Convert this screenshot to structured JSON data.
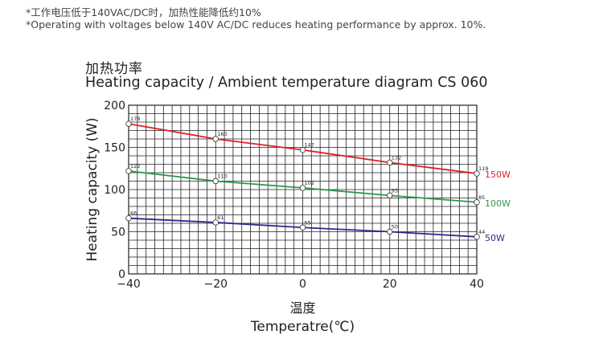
{
  "notes": {
    "cn": "*工作电压低于140VAC/DC时，加热性能降低约10%",
    "en": "*Operating with voltages below 140V AC/DC reduces heating performance by approx. 10%."
  },
  "chart_data": {
    "type": "line",
    "title_cn": "加热功率",
    "title": "Heating capacity / Ambient temperature diagram CS 060",
    "xlabel_cn": "温度",
    "xlabel": "Temperatre(℃)",
    "ylabel": "Heating capacity (W)",
    "xlim": [
      -40,
      40
    ],
    "ylim": [
      0,
      200
    ],
    "x_ticks": [
      "−40",
      "−20",
      "0",
      "20",
      "40"
    ],
    "y_ticks": [
      "0",
      "50",
      "100",
      "150",
      "200"
    ],
    "grid": true,
    "legend": "right-of-lines",
    "x": [
      -40,
      -20,
      0,
      20,
      40
    ],
    "series": [
      {
        "name": "150W",
        "color": "#e31e24",
        "values": [
          178,
          160,
          147,
          132,
          119
        ]
      },
      {
        "name": "100W",
        "color": "#2a9a48",
        "values": [
          122,
          110,
          102,
          93,
          85
        ]
      },
      {
        "name": "50W",
        "color": "#2b2a8c",
        "values": [
          66,
          61,
          55,
          50,
          44
        ]
      }
    ]
  }
}
